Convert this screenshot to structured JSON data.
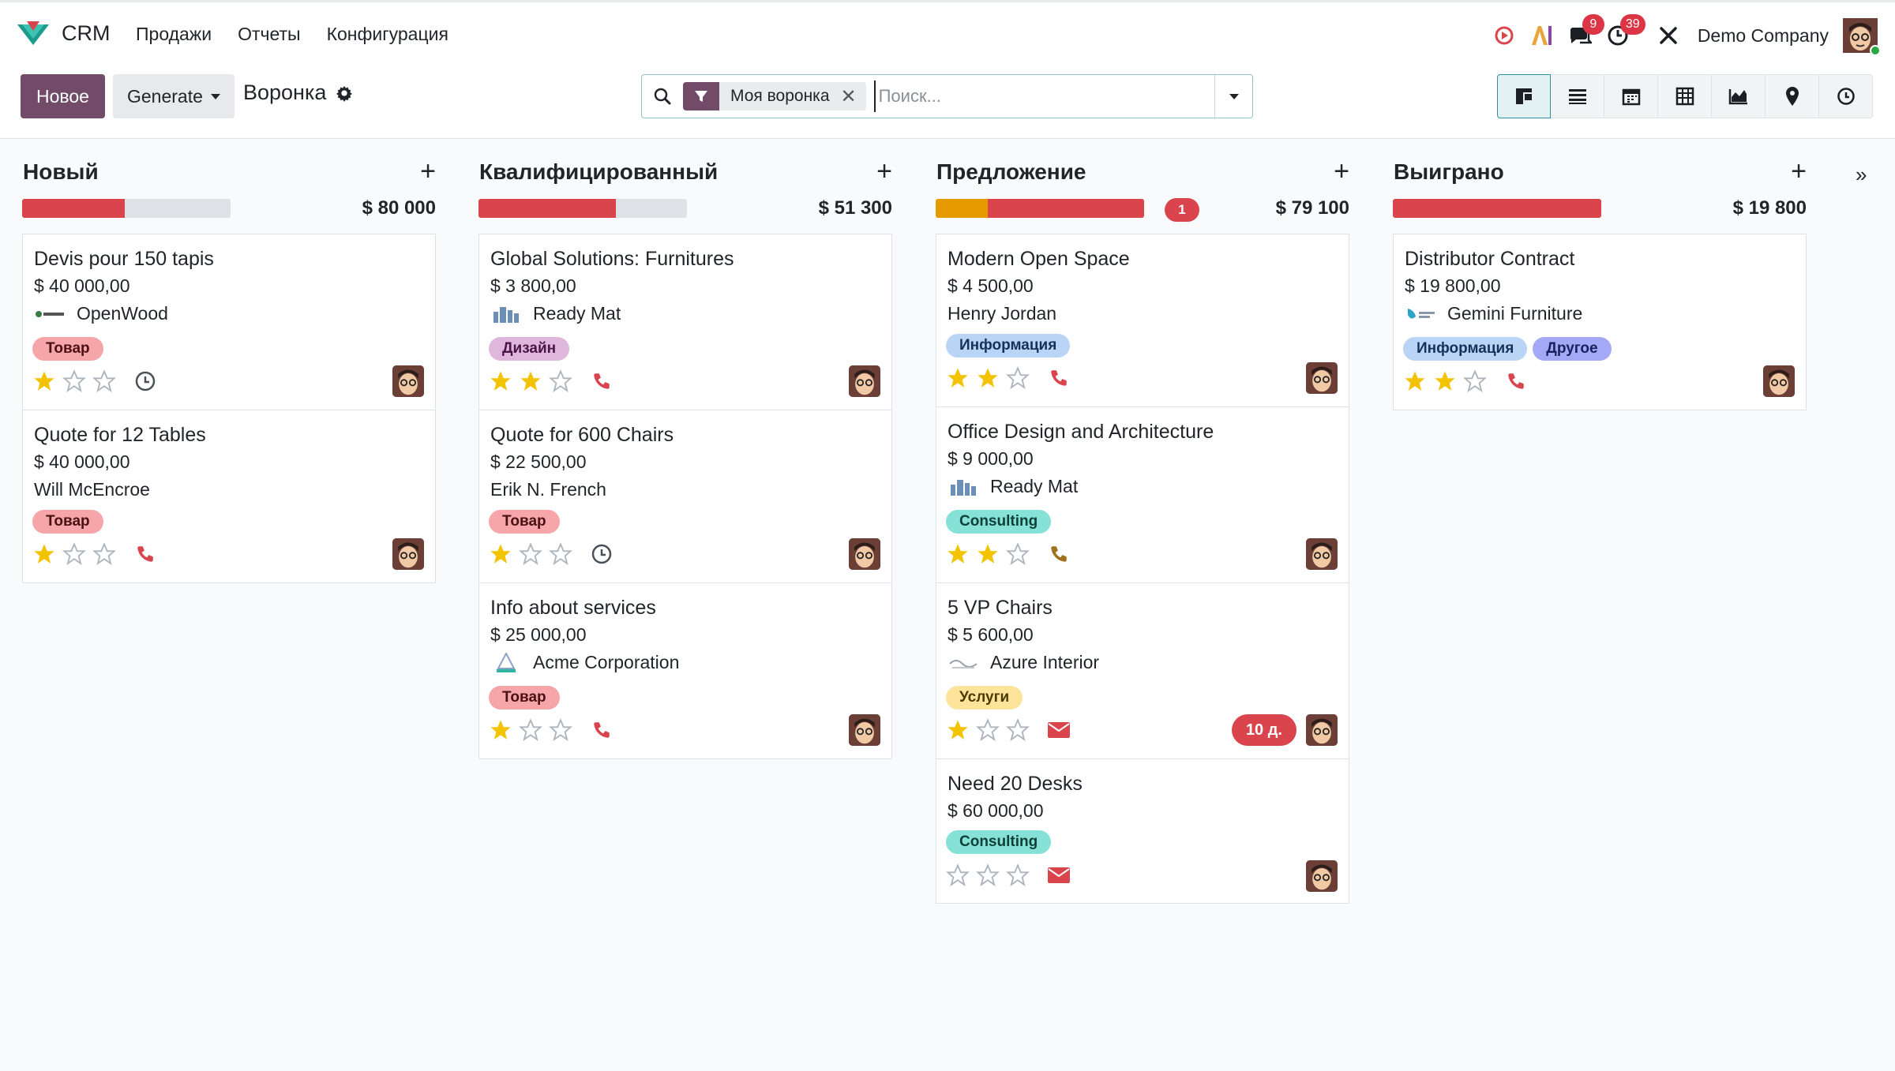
{
  "nav": {
    "app_name": "CRM",
    "menu": [
      "Продажи",
      "Отчеты",
      "Конфигурация"
    ],
    "messages_count": "9",
    "activities_count": "39",
    "company": "Demo Company"
  },
  "control": {
    "new_label": "Новое",
    "generate_label": "Generate",
    "breadcrumb": "Воронка",
    "facet_label": "Моя воронка",
    "search_placeholder": "Поиск..."
  },
  "colors": {
    "brand": "#714b67",
    "red": "#d9444d",
    "orange": "#e59a00",
    "star": "#f3c300"
  },
  "columns": [
    {
      "title": "Новый",
      "total": "$ 80 000",
      "badge": "",
      "cards": [
        {
          "title": "Devis pour 150 tapis",
          "amount": "$ 40 000,00",
          "partner": "OpenWood",
          "tags": [
            "Товар"
          ],
          "stars": 1,
          "activity": "clock-icon"
        },
        {
          "title": "Quote for 12 Tables",
          "amount": "$ 40 000,00",
          "partner": "Will McEncroe",
          "tags": [
            "Товар"
          ],
          "stars": 1,
          "activity": "phone-icon"
        }
      ]
    },
    {
      "title": "Квалифицированный",
      "total": "$ 51 300",
      "badge": "",
      "cards": [
        {
          "title": "Global Solutions: Furnitures",
          "amount": "$ 3 800,00",
          "partner": "Ready Mat",
          "tags": [
            "Дизайн"
          ],
          "stars": 2,
          "activity": "phone-icon"
        },
        {
          "title": "Quote for 600 Chairs",
          "amount": "$ 22 500,00",
          "partner": "Erik N. French",
          "tags": [
            "Товар"
          ],
          "stars": 1,
          "activity": "clock-icon"
        },
        {
          "title": "Info about services",
          "amount": "$ 25 000,00",
          "partner": "Acme Corporation",
          "tags": [
            "Товар"
          ],
          "stars": 1,
          "activity": "phone-icon"
        }
      ]
    },
    {
      "title": "Предложение",
      "total": "$ 79 100",
      "badge": "1",
      "cards": [
        {
          "title": "Modern Open Space",
          "amount": "$ 4 500,00",
          "partner": "Henry Jordan",
          "tags": [
            "Информация"
          ],
          "stars": 2,
          "activity": "phone-icon"
        },
        {
          "title": "Office Design and Architecture",
          "amount": "$ 9 000,00",
          "partner": "Ready Mat",
          "tags": [
            "Consulting"
          ],
          "stars": 2,
          "activity": "phone-icon"
        },
        {
          "title": "5 VP Chairs",
          "amount": "$ 5 600,00",
          "partner": "Azure Interior",
          "tags": [
            "Услуги"
          ],
          "stars": 1,
          "activity": "envelope-icon",
          "deadline": "10 д."
        },
        {
          "title": "Need 20 Desks",
          "amount": "$ 60 000,00",
          "partner": "",
          "tags": [
            "Consulting"
          ],
          "stars": 0,
          "activity": "envelope-icon"
        }
      ]
    },
    {
      "title": "Выиграно",
      "total": "$ 19 800",
      "badge": "",
      "cards": [
        {
          "title": "Distributor Contract",
          "amount": "$ 19 800,00",
          "partner": "Gemini Furniture",
          "tags": [
            "Информация",
            "Другое"
          ],
          "stars": 2,
          "activity": "phone-icon"
        }
      ]
    }
  ]
}
